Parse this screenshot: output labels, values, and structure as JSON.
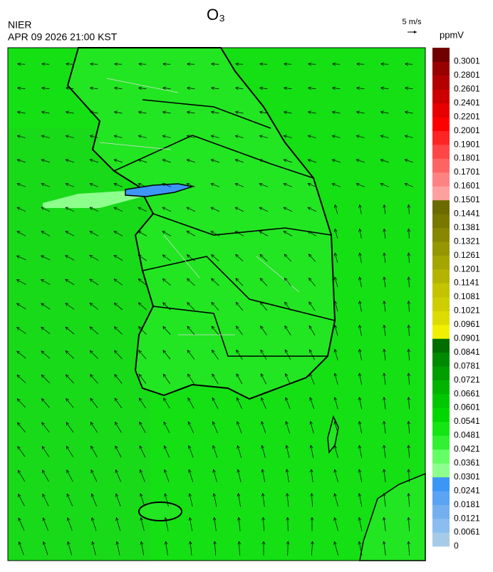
{
  "header": {
    "title": "O₃",
    "source": "NIER",
    "datetime": "APR 09 2026 21:00 KST",
    "vector_scale": "5 m/s"
  },
  "colorbar": {
    "unit": "ppmV",
    "levels": [
      0,
      0.0061,
      0.0121,
      0.0181,
      0.0241,
      0.0301,
      0.0361,
      0.0421,
      0.0481,
      0.0541,
      0.0601,
      0.0661,
      0.0721,
      0.0781,
      0.0841,
      0.0901,
      0.0961,
      0.1021,
      0.1081,
      0.1141,
      0.1201,
      0.1261,
      0.1321,
      0.1381,
      0.1441,
      0.1501,
      0.1601,
      0.1701,
      0.1801,
      0.1901,
      0.2001,
      0.2201,
      0.2401,
      0.2601,
      0.2801,
      0.3001
    ],
    "colors": [
      "#a6cbe9",
      "#8cbdf0",
      "#74b0f0",
      "#5aa4f3",
      "#3c96f5",
      "#8cff8c",
      "#64ff64",
      "#32f032",
      "#14e614",
      "#00d700",
      "#00c800",
      "#00b400",
      "#009f00",
      "#008a00",
      "#006e00",
      "#f0f000",
      "#dcdc00",
      "#cdcd00",
      "#c3c300",
      "#b4b400",
      "#a5a500",
      "#969600",
      "#878700",
      "#787800",
      "#6b6b00",
      "#ffa0a0",
      "#ff8282",
      "#ff6464",
      "#ff4646",
      "#ff2525",
      "#ff0000",
      "#e60000",
      "#cc0000",
      "#b30000",
      "#990000",
      "#700000"
    ]
  }
}
